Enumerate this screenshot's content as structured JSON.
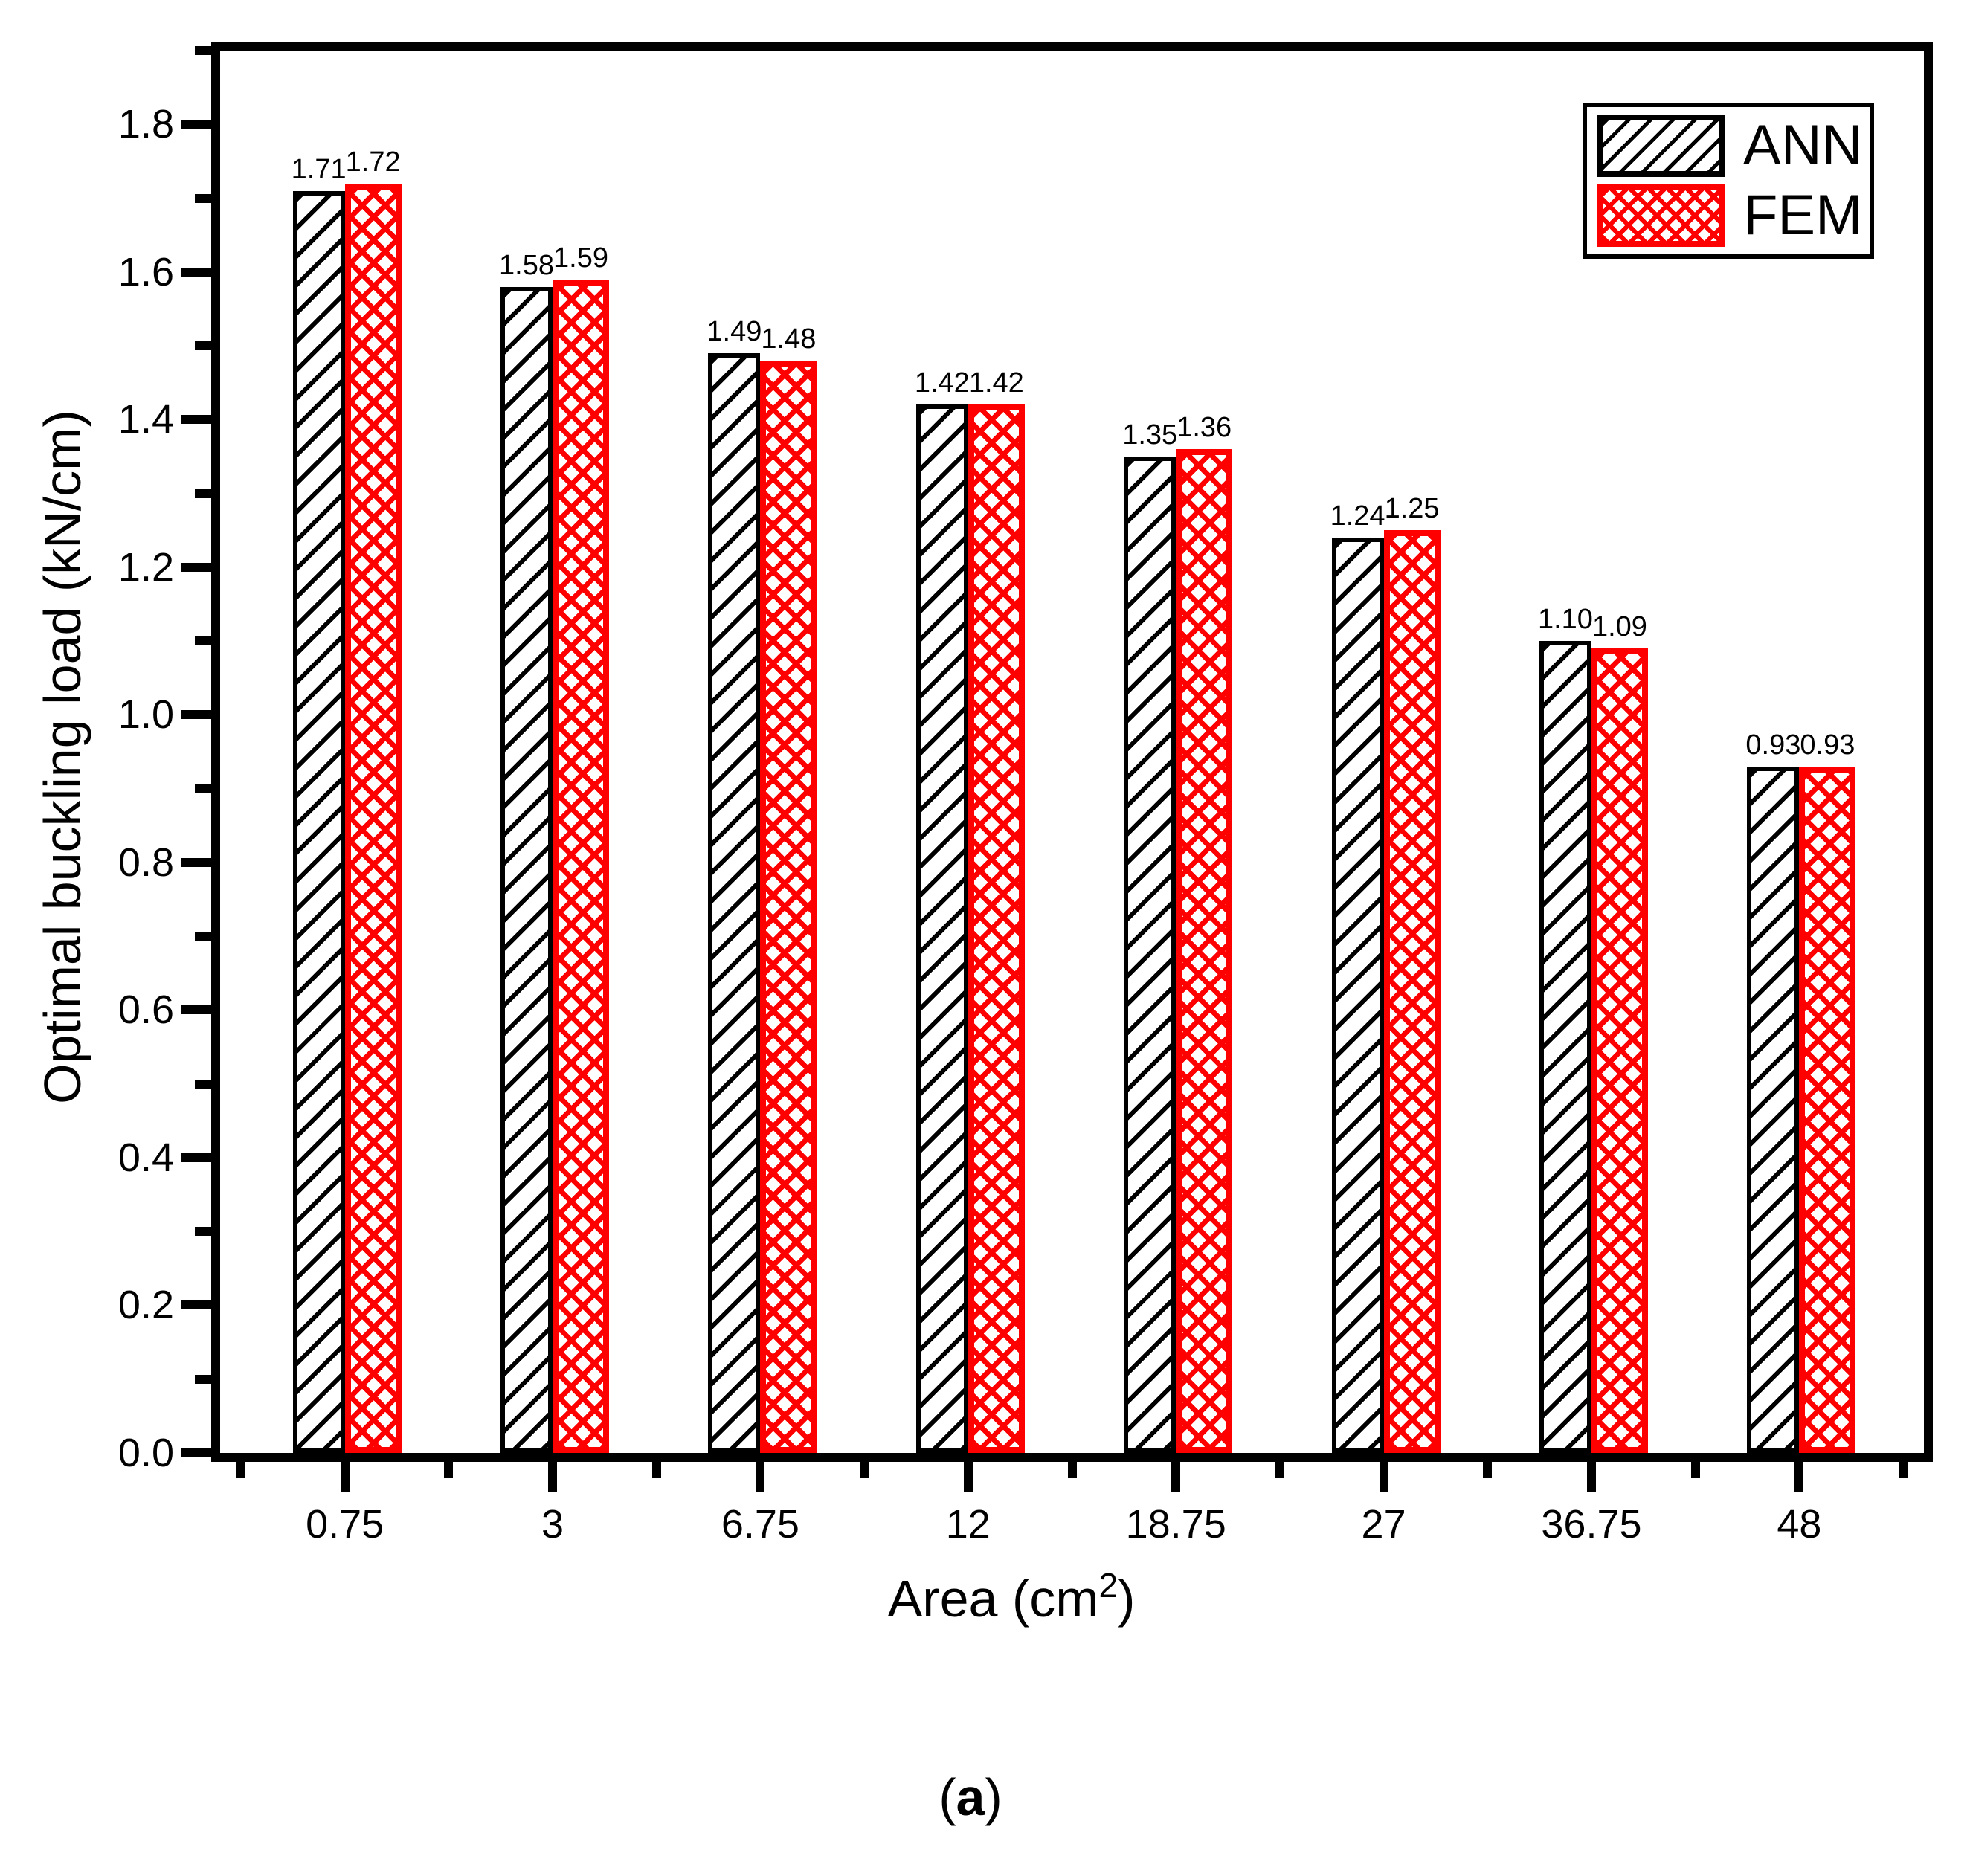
{
  "figure": {
    "background": "#FFFFFF",
    "caption": {
      "pre": "(",
      "label": "a",
      "post": ")"
    }
  },
  "chart_data": {
    "type": "bar",
    "title": "",
    "categories": [
      "0.75",
      "3",
      "6.75",
      "12",
      "18.75",
      "27",
      "36.75",
      "48"
    ],
    "series": [
      {
        "name": "ANN",
        "values": [
          1.71,
          1.58,
          1.49,
          1.42,
          1.35,
          1.24,
          1.1,
          0.93
        ],
        "labels": [
          "1.71",
          "1.58",
          "1.49",
          "1.42",
          "1.35",
          "1.24",
          "1.10",
          "0.93"
        ],
        "color": "#000000",
        "pattern": "diagonal-hatch"
      },
      {
        "name": "FEM",
        "values": [
          1.72,
          1.59,
          1.48,
          1.42,
          1.36,
          1.25,
          1.09,
          0.93
        ],
        "labels": [
          "1.72",
          "1.59",
          "1.48",
          "1.42",
          "1.36",
          "1.25",
          "1.09",
          "0.93"
        ],
        "color": "#FF0000",
        "pattern": "crosshatch"
      }
    ],
    "xlabel": {
      "pre": "Area (cm",
      "sup": "2",
      "post": ")"
    },
    "ylabel": "Optimal buckling load (kN/cm)",
    "y_axis": {
      "min": 0,
      "max": 1.9,
      "major_step": 0.2,
      "minor_step": 0.1,
      "tick_labels": [
        "0.0",
        "0.2",
        "0.4",
        "0.6",
        "0.8",
        "1.0",
        "1.2",
        "1.4",
        "1.6",
        "1.8"
      ]
    },
    "x_axis": {
      "range": [
        0.4,
        8.6
      ],
      "minor_positions_half_step": true
    },
    "legend": {
      "position": "top-right",
      "entries": [
        "ANN",
        "FEM"
      ]
    },
    "grid": false
  }
}
